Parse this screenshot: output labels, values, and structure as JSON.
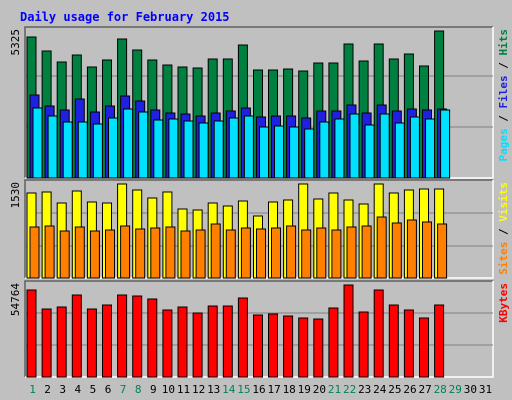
{
  "chart_data": {
    "type": "bar",
    "title": "Daily usage for February 2015",
    "categories": [
      "1",
      "2",
      "3",
      "4",
      "5",
      "6",
      "7",
      "8",
      "9",
      "10",
      "11",
      "12",
      "13",
      "14",
      "15",
      "16",
      "17",
      "18",
      "19",
      "20",
      "21",
      "22",
      "23",
      "24",
      "25",
      "26",
      "27",
      "28",
      "29",
      "30",
      "31"
    ],
    "weekend_days": [
      "1",
      "7",
      "8",
      "14",
      "15",
      "21",
      "22",
      "28",
      "29"
    ],
    "panels": [
      {
        "id": "hits-files-pages",
        "max_label": "5325",
        "ymax": 5325,
        "legend": [
          "Pages",
          "Files",
          "Hits"
        ],
        "series": [
          {
            "name": "Hits",
            "color": "#008040",
            "values": [
              5123,
              4595,
              4204,
              4458,
              4014,
              4289,
              5040,
              4624,
              4269,
              4086,
              4003,
              3982,
              4315,
              4322,
              4828,
              3922,
              3902,
              3942,
              3869,
              4178,
              4181,
              4869,
              4227,
              4865,
              4306,
              4478,
              4071,
              5325
            ]
          },
          {
            "name": "Files",
            "color": "#2020e0",
            "values": [
              3003,
              2596,
              2448,
              2848,
              2386,
              2619,
              2973,
              2796,
              2470,
              2360,
              2332,
              2260,
              2342,
              2445,
              2541,
              2210,
              2250,
              2255,
              2180,
              2409,
              2428,
              2652,
              2339,
              2628,
              2431,
              2506,
              2447,
              2503
            ]
          },
          {
            "name": "Pages",
            "color": "#00e0ff",
            "values": [
              2536,
              2259,
              2011,
              2028,
              1955,
              2161,
              2504,
              2376,
              2115,
              2145,
              2061,
              1975,
              2069,
              2158,
              2255,
              1860,
              1897,
              1855,
              1774,
              2032,
              2139,
              2333,
              1928,
              2315,
              1992,
              2209,
              2136,
              2468
            ]
          }
        ]
      },
      {
        "id": "visits-sites",
        "max_label": "1530",
        "ymax": 1530,
        "legend": [
          "Sites",
          "Visits"
        ],
        "series": [
          {
            "name": "Visits",
            "color": "#ffff00",
            "values": [
              1378,
              1404,
              1221,
              1415,
              1233,
              1221,
              1530,
              1436,
              1309,
              1396,
              1126,
              1099,
              1226,
              1164,
              1260,
              1009,
              1238,
              1265,
              1530,
              1293,
              1378,
              1263,
              1205,
              1530,
              1378,
              1436,
              1454,
              1456
            ]
          },
          {
            "name": "Sites",
            "color": "#ff8000",
            "values": [
              834,
              846,
              771,
              831,
              762,
              774,
              846,
              800,
              821,
              829,
              764,
              786,
              871,
              786,
              811,
              790,
              812,
              839,
              776,
              818,
              786,
              823,
              846,
              1001,
              903,
              950,
              917,
              878
            ]
          }
        ]
      },
      {
        "id": "kbytes",
        "max_label": "54764",
        "ymax": 54764,
        "legend": [
          "KBytes"
        ],
        "series": [
          {
            "name": "KBytes",
            "color": "#ff0000",
            "values": [
              52034,
              40542,
              41628,
              49020,
              40542,
              43151,
              48541,
              48103,
              46700,
              40096,
              41628,
              37906,
              42058,
              42058,
              47264,
              36815,
              37349,
              36290,
              35267,
              34755,
              41181,
              54764,
              38440,
              52034,
              43151,
              39649,
              35267,
              43151
            ]
          }
        ]
      }
    ]
  }
}
